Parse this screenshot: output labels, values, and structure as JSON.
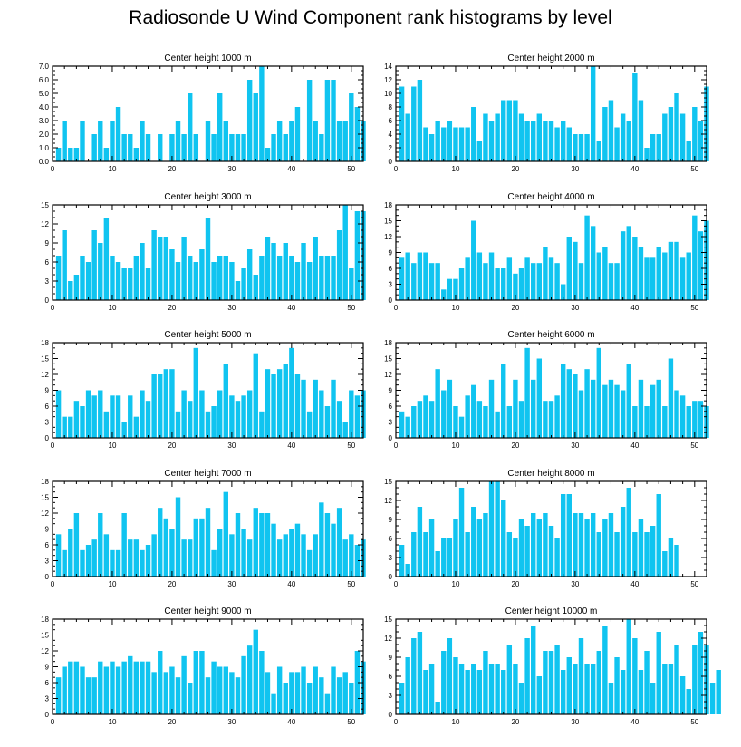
{
  "title": "Radiosonde U Wind Component rank histograms by level",
  "colors": {
    "bar": "#10C4F0",
    "axis": "#000000",
    "background": "#FFFFFF"
  },
  "chart_data": [
    {
      "type": "bar",
      "title": "Center height 1000 m",
      "xlim": [
        0,
        52
      ],
      "ylim": [
        0,
        7
      ],
      "xticks": [
        0,
        10,
        20,
        30,
        40,
        50
      ],
      "yticks": [
        0,
        1,
        2,
        3,
        4,
        5,
        6,
        7
      ],
      "ytick_labels": [
        "0.0",
        "1.0",
        "2.0",
        "3.0",
        "4.0",
        "5.0",
        "6.0",
        "7.0"
      ],
      "values": [
        1,
        3,
        1,
        1,
        3,
        0,
        2,
        3,
        1,
        3,
        4,
        2,
        2,
        1,
        3,
        2,
        0,
        2,
        0,
        2,
        3,
        2,
        5,
        2,
        0,
        3,
        2,
        5,
        3,
        2,
        2,
        2,
        6,
        5,
        7,
        1,
        2,
        3,
        2,
        3,
        4,
        0,
        6,
        3,
        2,
        6,
        6,
        3,
        3,
        5,
        4,
        3
      ]
    },
    {
      "type": "bar",
      "title": "Center height 2000 m",
      "xlim": [
        0,
        52
      ],
      "ylim": [
        0,
        14
      ],
      "xticks": [
        0,
        10,
        20,
        30,
        40,
        50
      ],
      "yticks": [
        0,
        2,
        4,
        6,
        8,
        10,
        12,
        14
      ],
      "ytick_labels": [
        "0",
        "2",
        "4",
        "6",
        "8",
        "10",
        "12",
        "14"
      ],
      "values": [
        11,
        7,
        11,
        12,
        5,
        4,
        6,
        5,
        6,
        5,
        5,
        5,
        8,
        3,
        7,
        6,
        7,
        9,
        9,
        9,
        7,
        6,
        6,
        7,
        6,
        6,
        5,
        6,
        5,
        4,
        4,
        4,
        14,
        3,
        8,
        9,
        5,
        7,
        6,
        13,
        9,
        2,
        4,
        4,
        7,
        8,
        10,
        7,
        3,
        8,
        6,
        11
      ]
    },
    {
      "type": "bar",
      "title": "Center height 3000 m",
      "xlim": [
        0,
        52
      ],
      "ylim": [
        0,
        15
      ],
      "xticks": [
        0,
        10,
        20,
        30,
        40,
        50
      ],
      "yticks": [
        0,
        3,
        6,
        9,
        12,
        15
      ],
      "ytick_labels": [
        "0",
        "3",
        "6",
        "9",
        "12",
        "15"
      ],
      "values": [
        7,
        11,
        3,
        4,
        7,
        6,
        11,
        9,
        13,
        7,
        6,
        5,
        5,
        7,
        9,
        5,
        11,
        10,
        10,
        8,
        6,
        10,
        7,
        6,
        8,
        13,
        6,
        7,
        7,
        6,
        3,
        5,
        8,
        4,
        7,
        10,
        9,
        7,
        9,
        7,
        6,
        9,
        6,
        10,
        7,
        7,
        7,
        11,
        15,
        5,
        14,
        14
      ]
    },
    {
      "type": "bar",
      "title": "Center height 4000 m",
      "xlim": [
        0,
        52
      ],
      "ylim": [
        0,
        18
      ],
      "xticks": [
        0,
        10,
        20,
        30,
        40,
        50
      ],
      "yticks": [
        0,
        3,
        6,
        9,
        12,
        15,
        18
      ],
      "ytick_labels": [
        "0",
        "3",
        "6",
        "9",
        "12",
        "15",
        "18"
      ],
      "values": [
        8,
        9,
        7,
        9,
        9,
        7,
        7,
        2,
        4,
        4,
        6,
        8,
        15,
        9,
        7,
        9,
        6,
        6,
        8,
        5,
        6,
        8,
        7,
        7,
        10,
        8,
        7,
        3,
        12,
        11,
        7,
        16,
        14,
        9,
        10,
        7,
        7,
        13,
        14,
        12,
        10,
        8,
        8,
        10,
        9,
        11,
        11,
        8,
        9,
        16,
        13,
        15
      ]
    },
    {
      "type": "bar",
      "title": "Center height 5000 m",
      "xlim": [
        0,
        52
      ],
      "ylim": [
        0,
        18
      ],
      "xticks": [
        0,
        10,
        20,
        30,
        40,
        50
      ],
      "yticks": [
        0,
        3,
        6,
        9,
        12,
        15,
        18
      ],
      "ytick_labels": [
        "0",
        "3",
        "6",
        "9",
        "12",
        "15",
        "18"
      ],
      "values": [
        9,
        4,
        4,
        7,
        6,
        9,
        8,
        9,
        5,
        8,
        8,
        3,
        8,
        4,
        9,
        7,
        12,
        12,
        13,
        13,
        5,
        9,
        7,
        17,
        9,
        5,
        6,
        9,
        14,
        8,
        7,
        8,
        9,
        16,
        5,
        13,
        12,
        13,
        14,
        17,
        12,
        11,
        5,
        11,
        9,
        6,
        11,
        7,
        3,
        9,
        8,
        9
      ]
    },
    {
      "type": "bar",
      "title": "Center height 6000 m",
      "xlim": [
        0,
        52
      ],
      "ylim": [
        0,
        18
      ],
      "xticks": [
        0,
        10,
        20,
        30,
        40,
        50
      ],
      "yticks": [
        0,
        3,
        6,
        9,
        12,
        15,
        18
      ],
      "ytick_labels": [
        "0",
        "3",
        "6",
        "9",
        "12",
        "15",
        "18"
      ],
      "values": [
        5,
        4,
        6,
        7,
        8,
        7,
        13,
        9,
        11,
        6,
        4,
        8,
        10,
        7,
        6,
        11,
        5,
        14,
        6,
        11,
        7,
        17,
        11,
        15,
        7,
        7,
        8,
        14,
        13,
        12,
        9,
        13,
        11,
        17,
        10,
        11,
        10,
        9,
        14,
        6,
        11,
        6,
        10,
        11,
        6,
        15,
        9,
        8,
        6,
        7,
        7,
        6
      ]
    },
    {
      "type": "bar",
      "title": "Center height 7000 m",
      "xlim": [
        0,
        52
      ],
      "ylim": [
        0,
        18
      ],
      "xticks": [
        0,
        10,
        20,
        30,
        40,
        50
      ],
      "yticks": [
        0,
        3,
        6,
        9,
        12,
        15,
        18
      ],
      "ytick_labels": [
        "0",
        "3",
        "6",
        "9",
        "12",
        "15",
        "18"
      ],
      "values": [
        8,
        5,
        9,
        12,
        5,
        6,
        7,
        12,
        8,
        5,
        5,
        12,
        7,
        7,
        5,
        6,
        8,
        13,
        11,
        9,
        15,
        7,
        7,
        11,
        11,
        13,
        5,
        9,
        16,
        8,
        12,
        9,
        7,
        13,
        12,
        12,
        10,
        7,
        8,
        9,
        10,
        8,
        5,
        8,
        14,
        12,
        10,
        13,
        7,
        8,
        6,
        7
      ]
    },
    {
      "type": "bar",
      "title": "Center height 8000 m",
      "xlim": [
        0,
        52
      ],
      "ylim": [
        0,
        15
      ],
      "xticks": [
        0,
        10,
        20,
        30,
        40,
        50
      ],
      "yticks": [
        0,
        3,
        6,
        9,
        12,
        15
      ],
      "ytick_labels": [
        "0",
        "3",
        "6",
        "9",
        "12",
        "15"
      ],
      "values": [
        5,
        2,
        7,
        11,
        7,
        9,
        4,
        6,
        6,
        9,
        14,
        7,
        11,
        9,
        10,
        15,
        15,
        12,
        7,
        6,
        9,
        8,
        10,
        9,
        10,
        8,
        6,
        13,
        13,
        10,
        10,
        9,
        10,
        7,
        9,
        10,
        7,
        11,
        14,
        7,
        9,
        7,
        8,
        13,
        4,
        6,
        5
      ]
    },
    {
      "type": "bar",
      "title": "Center height 9000 m",
      "xlim": [
        0,
        52
      ],
      "ylim": [
        0,
        18
      ],
      "xticks": [
        0,
        10,
        20,
        30,
        40,
        50
      ],
      "yticks": [
        0,
        3,
        6,
        9,
        12,
        15,
        18
      ],
      "ytick_labels": [
        "0",
        "3",
        "6",
        "9",
        "12",
        "15",
        "18"
      ],
      "values": [
        7,
        9,
        10,
        10,
        9,
        7,
        7,
        10,
        9,
        10,
        9,
        10,
        11,
        10,
        10,
        10,
        8,
        12,
        8,
        9,
        7,
        11,
        6,
        12,
        12,
        7,
        10,
        9,
        9,
        8,
        7,
        11,
        13,
        16,
        12,
        8,
        4,
        9,
        6,
        8,
        8,
        9,
        6,
        9,
        7,
        4,
        9,
        7,
        8,
        6,
        12,
        10
      ]
    },
    {
      "type": "bar",
      "title": "Center height 10000 m",
      "xlim": [
        0,
        52
      ],
      "ylim": [
        0,
        15
      ],
      "xticks": [
        0,
        10,
        20,
        30,
        40,
        50
      ],
      "yticks": [
        0,
        3,
        6,
        9,
        12,
        15
      ],
      "ytick_labels": [
        "0",
        "3",
        "6",
        "9",
        "12",
        "15"
      ],
      "values": [
        5,
        9,
        12,
        13,
        7,
        8,
        2,
        10,
        12,
        9,
        8,
        7,
        8,
        7,
        10,
        8,
        8,
        7,
        11,
        8,
        5,
        12,
        14,
        6,
        10,
        10,
        11,
        7,
        9,
        8,
        12,
        8,
        8,
        10,
        14,
        5,
        9,
        7,
        15,
        12,
        7,
        10,
        5,
        13,
        8,
        8,
        11,
        6,
        4,
        11,
        13,
        11,
        5,
        7
      ]
    }
  ]
}
